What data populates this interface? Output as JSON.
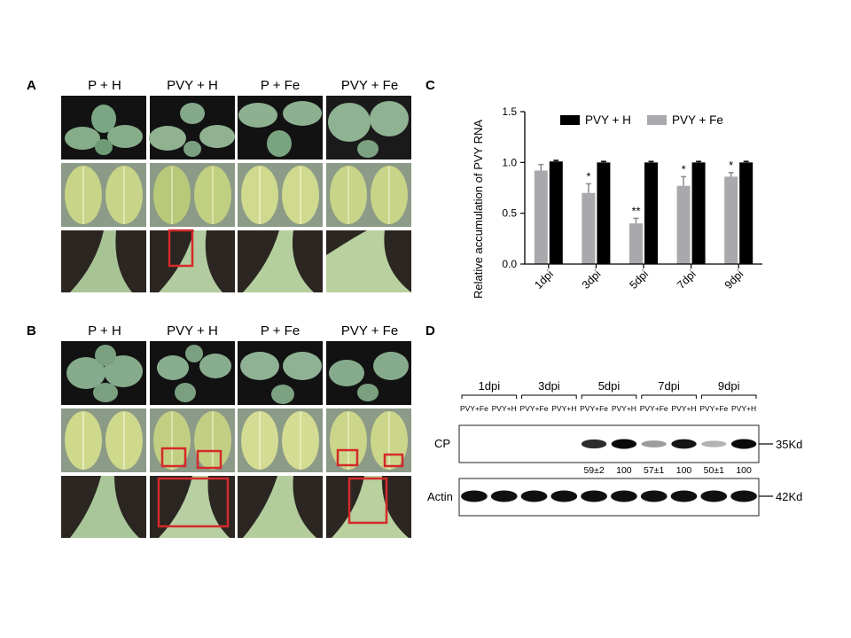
{
  "panels": {
    "a": "A",
    "b": "B",
    "c": "C",
    "d": "D"
  },
  "photo_columns": [
    "P + H",
    "PVY + H",
    "P + Fe",
    "PVY + Fe"
  ],
  "chart_data": {
    "type": "bar",
    "categories": [
      "1dpi",
      "3dpi",
      "5dpi",
      "7dpi",
      "9dpi"
    ],
    "series": [
      {
        "name": "PVY + H",
        "values": [
          1.01,
          1.0,
          1.0,
          1.0,
          1.0
        ],
        "errors": [
          0.01,
          0.01,
          0.01,
          0.01,
          0.01
        ],
        "color": "#000000"
      },
      {
        "name": "PVY + Fe",
        "values": [
          0.92,
          0.7,
          0.4,
          0.77,
          0.86
        ],
        "errors": [
          0.06,
          0.09,
          0.05,
          0.09,
          0.04
        ],
        "color": "#a8a8ad"
      }
    ],
    "significance": [
      "",
      "*",
      "**",
      "*",
      "*"
    ],
    "title": "",
    "xlabel": "",
    "ylabel": "Relative accumulation of PVY RNA",
    "ylim": [
      0,
      1.5
    ],
    "yticks": [
      "0.0",
      "0.5",
      "1.0",
      "1.5"
    ],
    "legend": "top",
    "grid": false
  },
  "blot": {
    "days": [
      "1dpi",
      "3dpi",
      "5dpi",
      "7dpi",
      "9dpi"
    ],
    "lanes": [
      "PVY+Fe",
      "PVY+H",
      "PVY+Fe",
      "PVY+H",
      "PVY+Fe",
      "PVY+H",
      "PVY+Fe",
      "PVY+H",
      "PVY+Fe",
      "PVY+H"
    ],
    "cp_label": "CP",
    "cp_size": "35Kd",
    "actin_label": "Actin",
    "actin_size": "42Kd",
    "cp_intensity": [
      0,
      0,
      0,
      0,
      0.85,
      1,
      0.35,
      0.95,
      0.25,
      1
    ],
    "quant": [
      "59±2",
      "100",
      "57±1",
      "100",
      "50±1",
      "100"
    ]
  }
}
